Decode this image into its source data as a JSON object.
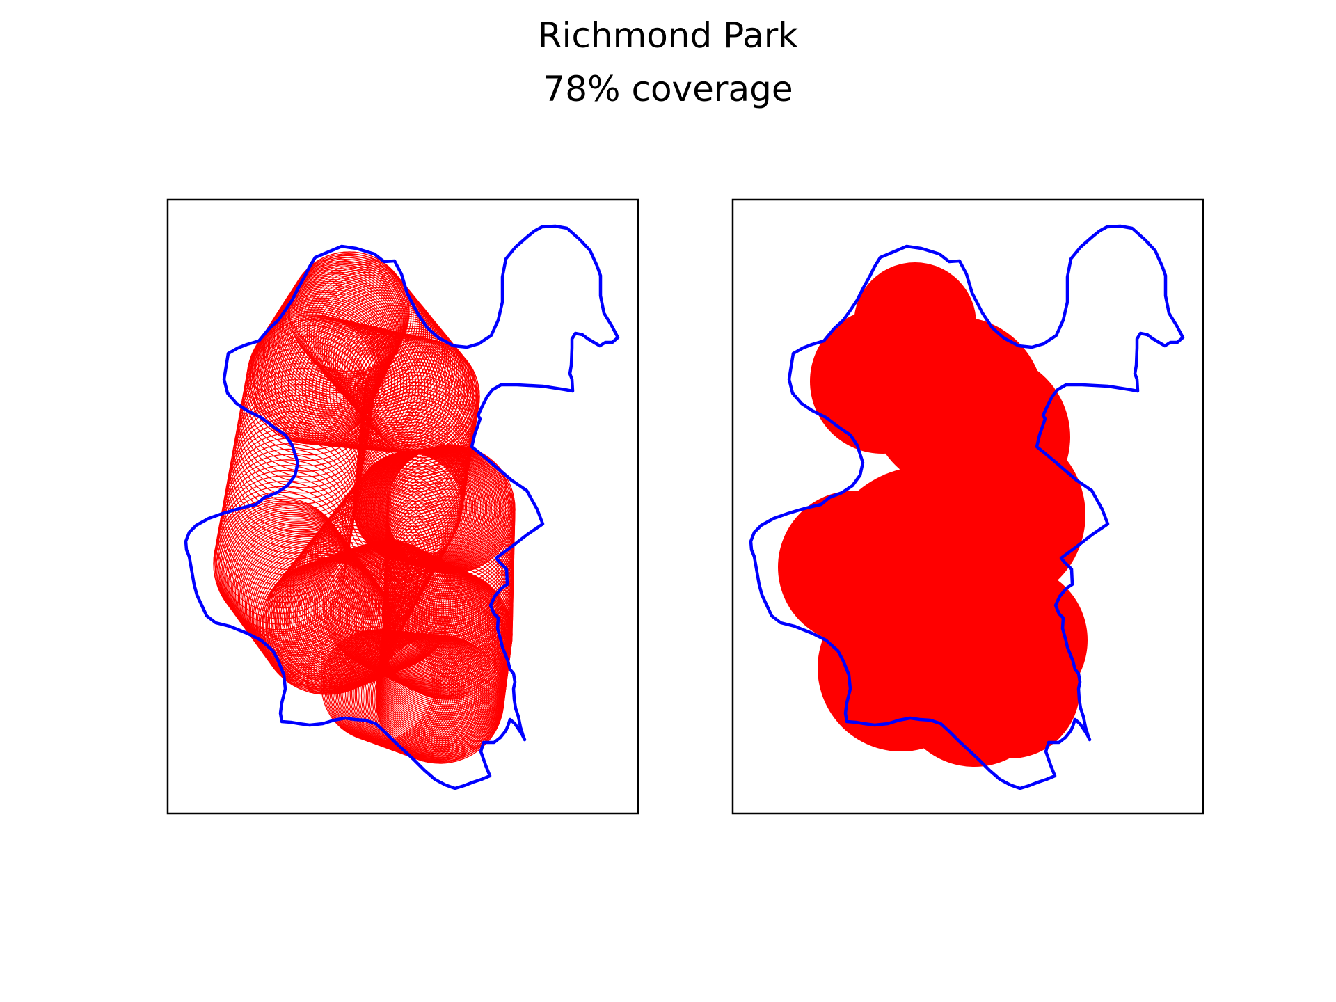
{
  "figure": {
    "title": "Richmond Park",
    "subtitle": "78% coverage"
  },
  "colors": {
    "boundary": "#0000ff",
    "coverage": "#ff0000",
    "frame": "#000000",
    "background": "#ffffff"
  },
  "panels": [
    {
      "name": "coverage-rings-panel",
      "style": "outline-circles"
    },
    {
      "name": "coverage-filled-panel",
      "style": "filled-circles"
    }
  ]
}
